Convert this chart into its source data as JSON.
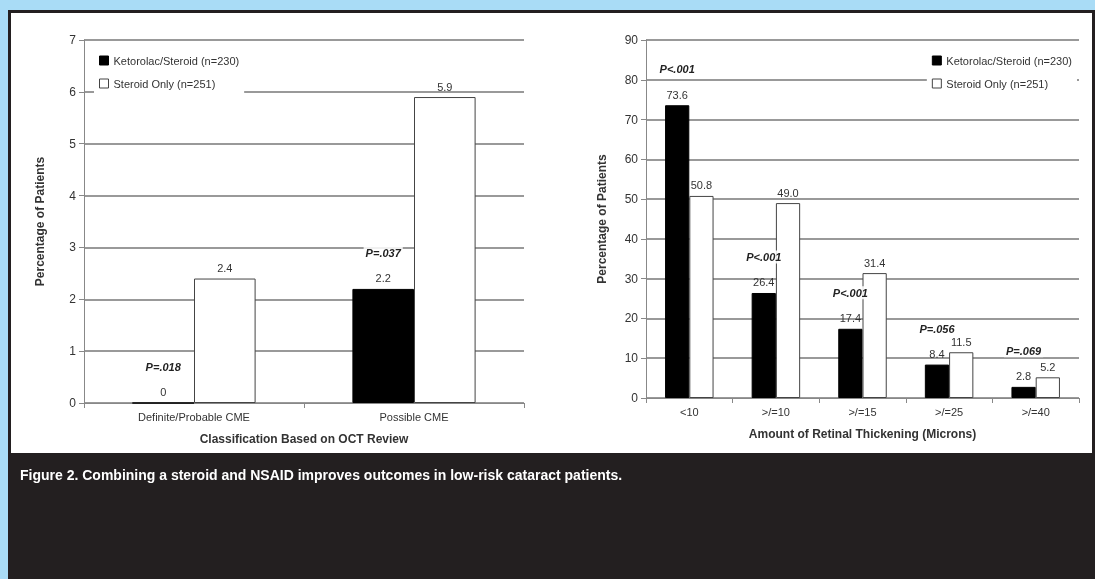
{
  "chart_data": [
    {
      "type": "bar",
      "categories": [
        "Definite/Probable CME",
        "Possible CME"
      ],
      "xlabel": "Classification Based on OCT Review",
      "ylabel": "Percentage of Patients",
      "ylim": [
        0,
        7
      ],
      "yticks": [
        0,
        1,
        2,
        3,
        4,
        5,
        6,
        7
      ],
      "grid": "y",
      "legend": "top left",
      "series": [
        {
          "name": "Ketorolac/Steroid (n=230)",
          "color": "#000000",
          "values": [
            0,
            2.2
          ],
          "value_labels": [
            "0",
            "2.2"
          ]
        },
        {
          "name": "Steroid Only (n=251)",
          "color": "#ffffff",
          "values": [
            2.4,
            5.9
          ],
          "value_labels": [
            "2.4",
            "5.9"
          ]
        }
      ],
      "annotations": [
        {
          "text": "P=.018",
          "x": "Definite/Probable CME",
          "y": 0
        },
        {
          "text": "P=.037",
          "x": "Possible CME",
          "y": 2.2
        },
        "Figure 2. Combining a steroid and NSAID improves outcomes in low-risk cataract patients."
      ]
    },
    {
      "type": "bar",
      "categories": [
        "<10",
        ">/=10",
        ">/=15",
        ">/=25",
        ">/=40"
      ],
      "xlabel": "Amount of Retinal Thickening (Microns)",
      "ylabel": "Percentage of Patients",
      "ylim": [
        0,
        90
      ],
      "yticks": [
        0,
        10,
        20,
        30,
        40,
        50,
        60,
        70,
        80,
        90
      ],
      "grid": "y",
      "legend": "top right",
      "series": [
        {
          "name": "Ketorolac/Steroid (n=230)",
          "color": "#000000",
          "values": [
            73.6,
            26.4,
            17.4,
            8.4,
            2.8
          ],
          "value_labels": [
            "73.6",
            "26.4",
            "17.4",
            "8.4",
            "2.8"
          ]
        },
        {
          "name": "Steroid Only (n=251)",
          "color": "#ffffff",
          "values": [
            50.8,
            49.0,
            31.4,
            11.5,
            5.2
          ],
          "value_labels": [
            "50.8",
            "49.0",
            "31.4",
            "11.5",
            "5.2"
          ]
        }
      ],
      "annotations": [
        {
          "text": "P<.001",
          "x": "<10",
          "y": 73.6
        },
        {
          "text": "P<.001",
          "x": ">/=10",
          "y": 26.4
        },
        {
          "text": "P<.001",
          "x": ">/=15",
          "y": 17.4
        },
        {
          "text": "P=.056",
          "x": ">/=25",
          "y": 8.4
        },
        {
          "text": "P=.069",
          "x": ">/=40",
          "y": 2.8
        }
      ]
    }
  ]
}
